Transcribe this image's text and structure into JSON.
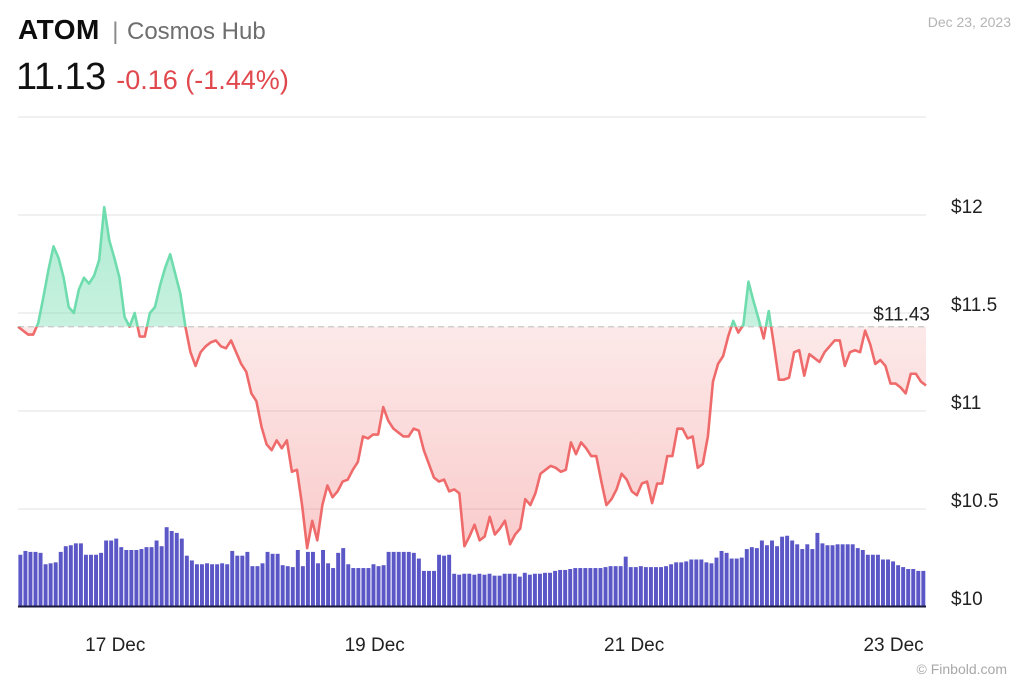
{
  "header": {
    "ticker": "ATOM",
    "separator": "|",
    "pair_name": "Cosmos Hub",
    "price": "11.13",
    "change": "-0.16 (-1.44%)",
    "date": "Dec 23, 2023"
  },
  "credit": "© Finbold.com",
  "colors": {
    "up": "#6fdcae",
    "down": "#ef6b6b",
    "volume": "#5b57c7",
    "grid": "#e6e6e6",
    "baseline_ref": "#c8c8c8"
  },
  "chart_data": {
    "type": "line",
    "title": "",
    "xlabel": "",
    "ylabel": "",
    "ylim": [
      10.0,
      12.5
    ],
    "grid": true,
    "y_ticks": [
      {
        "value": 12.0,
        "label": "$12"
      },
      {
        "value": 11.5,
        "label": "$11.5"
      },
      {
        "value": 11.0,
        "label": "$11"
      },
      {
        "value": 10.5,
        "label": "$10.5"
      },
      {
        "value": 10.0,
        "label": "$10"
      }
    ],
    "x_ticks": [
      {
        "day": 16.75,
        "label": "17 Dec"
      },
      {
        "day": 18.75,
        "label": "19 Dec"
      },
      {
        "day": 20.75,
        "label": "21 Dec"
      },
      {
        "day": 22.75,
        "label": "23 Dec"
      }
    ],
    "x_range_days": [
      16.0,
      23.0
    ],
    "reference": {
      "value": 11.43,
      "label": "$11.43"
    },
    "price": [
      11.43,
      11.41,
      11.39,
      11.39,
      11.45,
      11.58,
      11.72,
      11.84,
      11.78,
      11.68,
      11.53,
      11.5,
      11.62,
      11.68,
      11.65,
      11.69,
      11.77,
      12.04,
      11.87,
      11.78,
      11.68,
      11.48,
      11.43,
      11.5,
      11.38,
      11.38,
      11.5,
      11.53,
      11.64,
      11.73,
      11.8,
      11.7,
      11.6,
      11.43,
      11.3,
      11.23,
      11.3,
      11.33,
      11.35,
      11.36,
      11.33,
      11.32,
      11.36,
      11.3,
      11.24,
      11.2,
      11.09,
      11.05,
      10.92,
      10.83,
      10.8,
      10.85,
      10.81,
      10.85,
      10.69,
      10.7,
      10.52,
      10.3,
      10.44,
      10.34,
      10.52,
      10.62,
      10.56,
      10.59,
      10.64,
      10.65,
      10.7,
      10.74,
      10.87,
      10.86,
      10.88,
      10.88,
      11.02,
      10.95,
      10.91,
      10.89,
      10.87,
      10.87,
      10.91,
      10.9,
      10.8,
      10.73,
      10.66,
      10.64,
      10.65,
      10.59,
      10.6,
      10.58,
      10.31,
      10.36,
      10.42,
      10.34,
      10.36,
      10.46,
      10.37,
      10.4,
      10.44,
      10.32,
      10.37,
      10.4,
      10.55,
      10.52,
      10.58,
      10.68,
      10.7,
      10.72,
      10.71,
      10.69,
      10.7,
      10.84,
      10.78,
      10.84,
      10.81,
      10.77,
      10.77,
      10.64,
      10.52,
      10.55,
      10.6,
      10.68,
      10.65,
      10.59,
      10.57,
      10.63,
      10.64,
      10.53,
      10.63,
      10.63,
      10.77,
      10.77,
      10.91,
      10.91,
      10.86,
      10.87,
      10.71,
      10.73,
      10.87,
      11.15,
      11.24,
      11.28,
      11.38,
      11.46,
      11.4,
      11.44,
      11.66,
      11.56,
      11.47,
      11.37,
      11.51,
      11.34,
      11.16,
      11.16,
      11.17,
      11.3,
      11.31,
      11.18,
      11.29,
      11.27,
      11.25,
      11.3,
      11.33,
      11.36,
      11.36,
      11.23,
      11.3,
      11.31,
      11.3,
      11.41,
      11.34,
      11.24,
      11.26,
      11.23,
      11.14,
      11.14,
      11.12,
      11.09,
      11.19,
      11.19,
      11.15,
      11.13
    ],
    "volume": [
      0.55,
      0.59,
      0.58,
      0.58,
      0.57,
      0.45,
      0.46,
      0.47,
      0.58,
      0.64,
      0.65,
      0.67,
      0.67,
      0.55,
      0.55,
      0.55,
      0.57,
      0.7,
      0.7,
      0.72,
      0.63,
      0.6,
      0.6,
      0.6,
      0.61,
      0.63,
      0.63,
      0.7,
      0.64,
      0.84,
      0.8,
      0.78,
      0.72,
      0.54,
      0.49,
      0.45,
      0.45,
      0.46,
      0.45,
      0.45,
      0.46,
      0.45,
      0.59,
      0.54,
      0.54,
      0.58,
      0.43,
      0.43,
      0.46,
      0.58,
      0.56,
      0.56,
      0.44,
      0.43,
      0.42,
      0.6,
      0.43,
      0.58,
      0.58,
      0.46,
      0.6,
      0.46,
      0.41,
      0.57,
      0.62,
      0.45,
      0.41,
      0.41,
      0.41,
      0.41,
      0.45,
      0.43,
      0.44,
      0.58,
      0.58,
      0.58,
      0.58,
      0.58,
      0.57,
      0.51,
      0.38,
      0.38,
      0.38,
      0.55,
      0.54,
      0.55,
      0.35,
      0.34,
      0.35,
      0.35,
      0.34,
      0.35,
      0.34,
      0.35,
      0.33,
      0.33,
      0.35,
      0.35,
      0.35,
      0.32,
      0.36,
      0.34,
      0.35,
      0.35,
      0.36,
      0.36,
      0.38,
      0.39,
      0.39,
      0.4,
      0.41,
      0.41,
      0.41,
      0.41,
      0.41,
      0.41,
      0.42,
      0.43,
      0.43,
      0.43,
      0.53,
      0.42,
      0.42,
      0.43,
      0.42,
      0.42,
      0.42,
      0.42,
      0.43,
      0.45,
      0.47,
      0.47,
      0.48,
      0.5,
      0.5,
      0.5,
      0.47,
      0.46,
      0.52,
      0.59,
      0.57,
      0.51,
      0.51,
      0.52,
      0.61,
      0.63,
      0.62,
      0.7,
      0.65,
      0.7,
      0.64,
      0.74,
      0.75,
      0.7,
      0.66,
      0.61,
      0.66,
      0.61,
      0.78,
      0.67,
      0.65,
      0.65,
      0.66,
      0.66,
      0.66,
      0.66,
      0.62,
      0.6,
      0.55,
      0.55,
      0.55,
      0.5,
      0.5,
      0.48,
      0.44,
      0.42,
      0.4,
      0.4,
      0.38,
      0.38
    ]
  }
}
